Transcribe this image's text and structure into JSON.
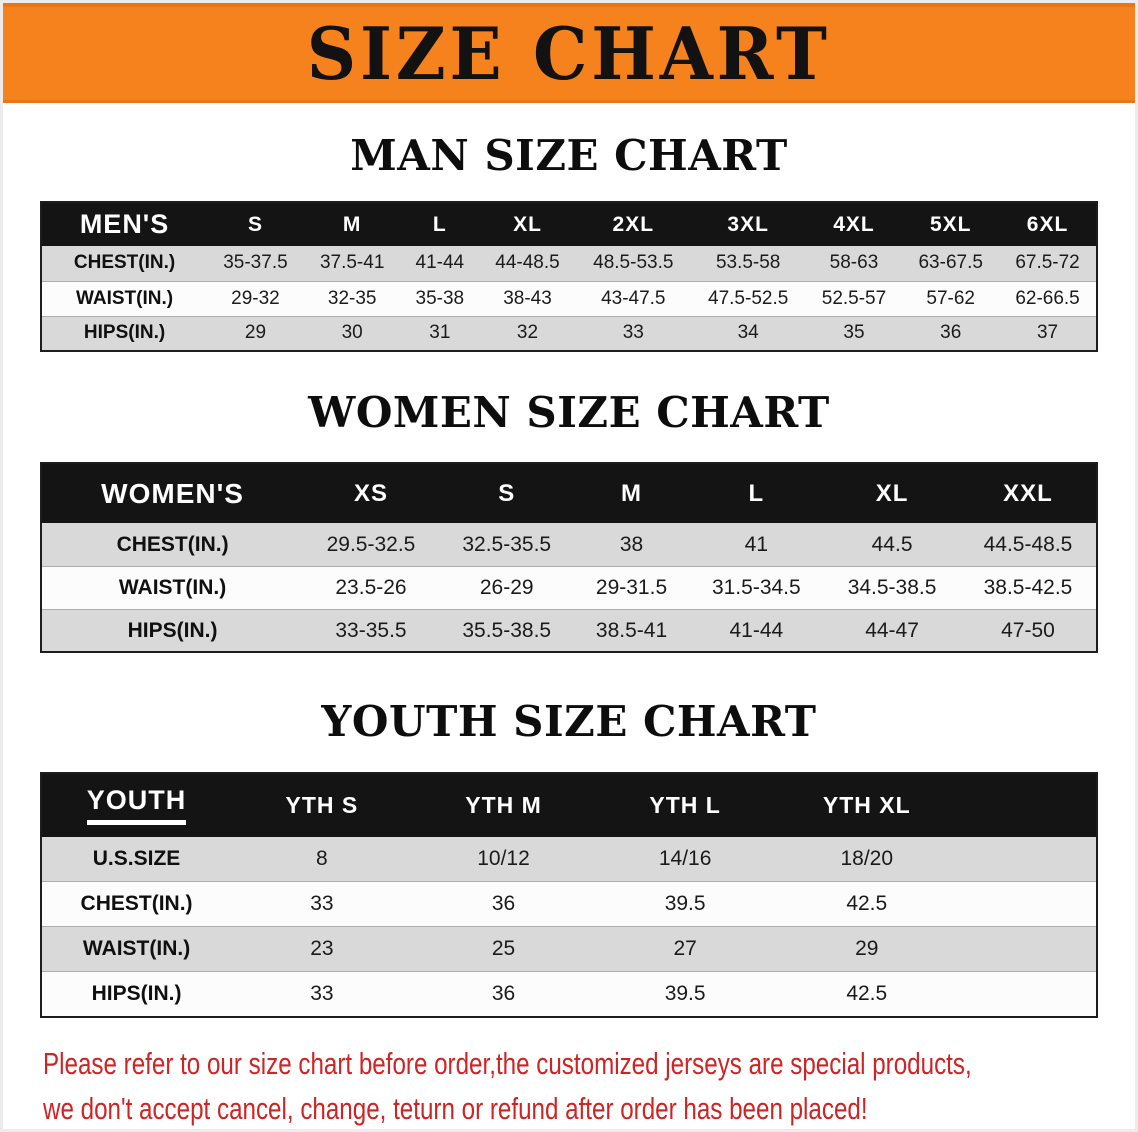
{
  "banner": {
    "title": "SIZE CHART"
  },
  "sections": [
    {
      "id": "men",
      "heading": "MAN SIZE CHART",
      "table_title": "MEN'S",
      "sizes": [
        "S",
        "M",
        "L",
        "XL",
        "2XL",
        "3XL",
        "4XL",
        "5XL",
        "6XL"
      ],
      "rows": [
        {
          "label": "CHEST(IN.)",
          "values": [
            "35-37.5",
            "37.5-41",
            "41-44",
            "44-48.5",
            "48.5-53.5",
            "53.5-58",
            "58-63",
            "63-67.5",
            "67.5-72"
          ]
        },
        {
          "label": "WAIST(IN.)",
          "values": [
            "29-32",
            "32-35",
            "35-38",
            "38-43",
            "43-47.5",
            "47.5-52.5",
            "52.5-57",
            "57-62",
            "62-66.5"
          ]
        },
        {
          "label": "HIPS(IN.)",
          "values": [
            "29",
            "30",
            "31",
            "32",
            "33",
            "34",
            "35",
            "36",
            "37"
          ]
        }
      ]
    },
    {
      "id": "women",
      "heading": "WOMEN SIZE CHART",
      "table_title": "WOMEN'S",
      "sizes": [
        "XS",
        "S",
        "M",
        "L",
        "XL",
        "XXL"
      ],
      "rows": [
        {
          "label": "CHEST(IN.)",
          "values": [
            "29.5-32.5",
            "32.5-35.5",
            "38",
            "41",
            "44.5",
            "44.5-48.5"
          ]
        },
        {
          "label": "WAIST(IN.)",
          "values": [
            "23.5-26",
            "26-29",
            "29-31.5",
            "31.5-34.5",
            "34.5-38.5",
            "38.5-42.5"
          ]
        },
        {
          "label": "HIPS(IN.)",
          "values": [
            "33-35.5",
            "35.5-38.5",
            "38.5-41",
            "41-44",
            "44-47",
            "47-50"
          ]
        }
      ]
    },
    {
      "id": "youth",
      "heading": "YOUTH SIZE CHART",
      "table_title": "YOUTH",
      "sizes": [
        "YTH S",
        "YTH M",
        "YTH L",
        "YTH XL"
      ],
      "rows": [
        {
          "label": "U.S.SIZE",
          "values": [
            "8",
            "10/12",
            "14/16",
            "18/20"
          ]
        },
        {
          "label": "CHEST(IN.)",
          "values": [
            "33",
            "36",
            "39.5",
            "42.5"
          ]
        },
        {
          "label": "WAIST(IN.)",
          "values": [
            "23",
            "25",
            "27",
            "29"
          ]
        },
        {
          "label": "HIPS(IN.)",
          "values": [
            "33",
            "36",
            "39.5",
            "42.5"
          ]
        }
      ]
    }
  ],
  "footer": {
    "line1": "Please refer to our size chart before order,the customized jerseys are special products,",
    "line2": "we don't accept cancel, change, teturn or refund after order has been placed!"
  },
  "colors": {
    "banner_bg": "#f5821c",
    "banner_text": "#121212",
    "table_header_bg": "#141414",
    "table_header_text": "#ffffff",
    "row_alt_bg": "#d9d9d9",
    "row_bg": "#fcfcfc",
    "heading_text": "#0d0d0d",
    "note_text": "#cf2424"
  }
}
